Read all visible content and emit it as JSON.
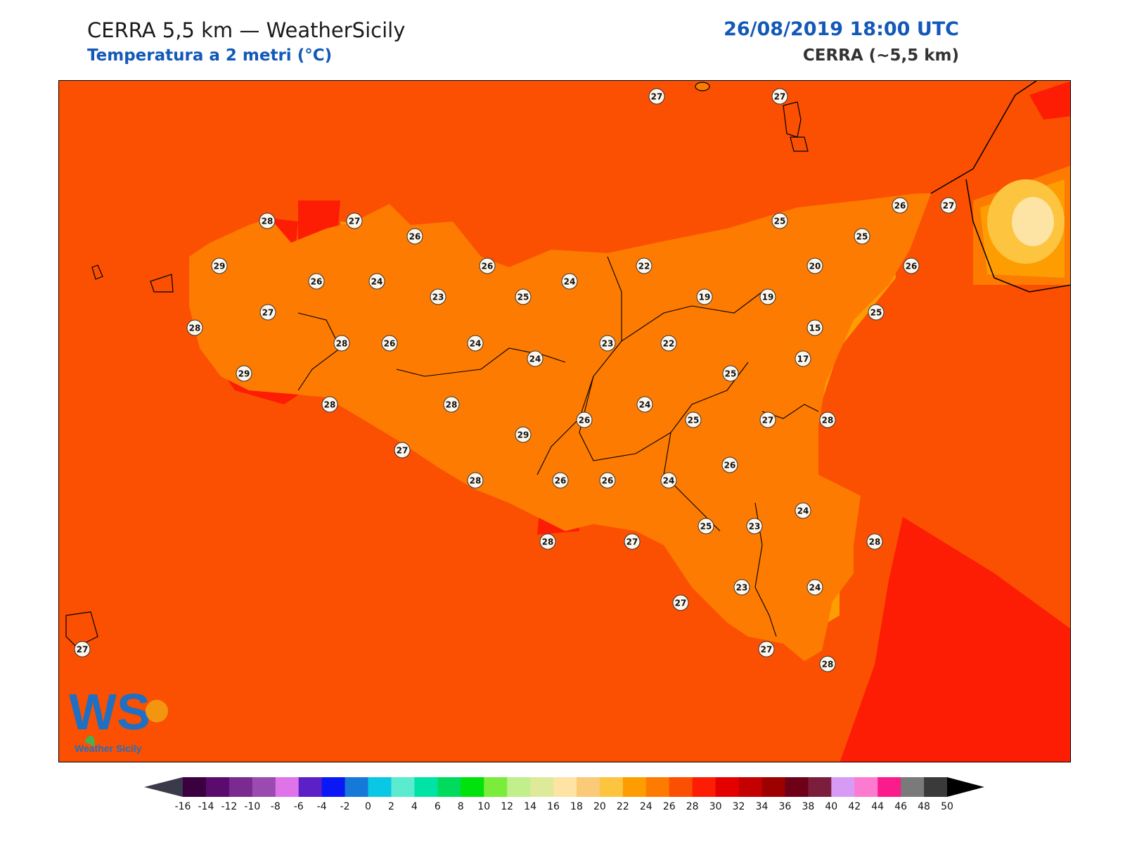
{
  "header": {
    "title": "CERRA 5,5 km — WeatherSicily",
    "subtitle": "Temperatura a 2 metri (°C)",
    "datetime": "26/08/2019 18:00 UTC",
    "model": "CERRA (~5,5 km)"
  },
  "logo": {
    "letters": "WS",
    "name": "Weather Sicily",
    "icon": "weather-sicily-logo-icon"
  },
  "colors": {
    "background_field": "#fb5001",
    "title_blue": "#1259b8",
    "coast_line": "#000000"
  },
  "stations": [
    {
      "value": "27",
      "id": "s1"
    },
    {
      "value": "27",
      "id": "s2"
    },
    {
      "value": "28",
      "id": "s3"
    },
    {
      "value": "27",
      "id": "s4"
    },
    {
      "value": "26",
      "id": "s5"
    },
    {
      "value": "29",
      "id": "s6"
    },
    {
      "value": "26",
      "id": "s7"
    },
    {
      "value": "24",
      "id": "s8"
    },
    {
      "value": "26",
      "id": "s9"
    },
    {
      "value": "25",
      "id": "s10"
    },
    {
      "value": "25",
      "id": "s11"
    },
    {
      "value": "26",
      "id": "s12"
    },
    {
      "value": "27",
      "id": "s13"
    },
    {
      "value": "24",
      "id": "s14"
    },
    {
      "value": "22",
      "id": "s15"
    },
    {
      "value": "20",
      "id": "s16"
    },
    {
      "value": "26",
      "id": "s17"
    },
    {
      "value": "23",
      "id": "s18"
    },
    {
      "value": "25",
      "id": "s19"
    },
    {
      "value": "19",
      "id": "s20"
    },
    {
      "value": "19",
      "id": "s21"
    },
    {
      "value": "27",
      "id": "s22"
    },
    {
      "value": "28",
      "id": "s23"
    },
    {
      "value": "25",
      "id": "s24"
    },
    {
      "value": "15",
      "id": "s25"
    },
    {
      "value": "28",
      "id": "s26"
    },
    {
      "value": "26",
      "id": "s27"
    },
    {
      "value": "24",
      "id": "s28"
    },
    {
      "value": "23",
      "id": "s29"
    },
    {
      "value": "22",
      "id": "s30"
    },
    {
      "value": "24",
      "id": "s31"
    },
    {
      "value": "17",
      "id": "s32"
    },
    {
      "value": "29",
      "id": "s33"
    },
    {
      "value": "25",
      "id": "s34"
    },
    {
      "value": "28",
      "id": "s35"
    },
    {
      "value": "28",
      "id": "s36"
    },
    {
      "value": "26",
      "id": "s37"
    },
    {
      "value": "24",
      "id": "s38"
    },
    {
      "value": "25",
      "id": "s39"
    },
    {
      "value": "27",
      "id": "s40"
    },
    {
      "value": "28",
      "id": "s41"
    },
    {
      "value": "29",
      "id": "s42"
    },
    {
      "value": "27",
      "id": "s43"
    },
    {
      "value": "26",
      "id": "s44"
    },
    {
      "value": "28",
      "id": "s45"
    },
    {
      "value": "26",
      "id": "s46"
    },
    {
      "value": "26",
      "id": "s47"
    },
    {
      "value": "24",
      "id": "s48"
    },
    {
      "value": "24",
      "id": "s49"
    },
    {
      "value": "25",
      "id": "s50"
    },
    {
      "value": "23",
      "id": "s51"
    },
    {
      "value": "28",
      "id": "s52"
    },
    {
      "value": "28",
      "id": "s53"
    },
    {
      "value": "27",
      "id": "s54"
    },
    {
      "value": "27",
      "id": "s55"
    },
    {
      "value": "23",
      "id": "s56"
    },
    {
      "value": "24",
      "id": "s57"
    },
    {
      "value": "27",
      "id": "s58"
    },
    {
      "value": "27",
      "id": "s59"
    },
    {
      "value": "28",
      "id": "s60"
    }
  ],
  "colorbar": {
    "ticks": [
      "-16",
      "-14",
      "-12",
      "-10",
      "-8",
      "-6",
      "-4",
      "-2",
      "0",
      "2",
      "4",
      "6",
      "8",
      "10",
      "12",
      "14",
      "16",
      "18",
      "20",
      "22",
      "24",
      "26",
      "28",
      "30",
      "32",
      "34",
      "36",
      "38",
      "40",
      "42",
      "44",
      "46",
      "48",
      "50"
    ],
    "colors": [
      "#3a003f",
      "#5b0b6e",
      "#7b2a8f",
      "#9b4ab0",
      "#df73ea",
      "#5b21c6",
      "#0a18f5",
      "#1679d8",
      "#0ac7e6",
      "#5bebcf",
      "#00e3a6",
      "#00db5e",
      "#00e20b",
      "#7aec3a",
      "#c0ef8c",
      "#dfe99a",
      "#fde3a4",
      "#fbca78",
      "#fcc43f",
      "#fd9d02",
      "#fd7b01",
      "#fb5001",
      "#fd1c04",
      "#e50000",
      "#c40000",
      "#9e0000",
      "#6e0018",
      "#7c1d3e",
      "#d79bf6",
      "#fc7ad0",
      "#fb1c8c",
      "#7a7a7a",
      "#3a3a3a"
    ],
    "left_arrow_color": "#3a3a4a",
    "right_arrow_color": "#000000"
  }
}
